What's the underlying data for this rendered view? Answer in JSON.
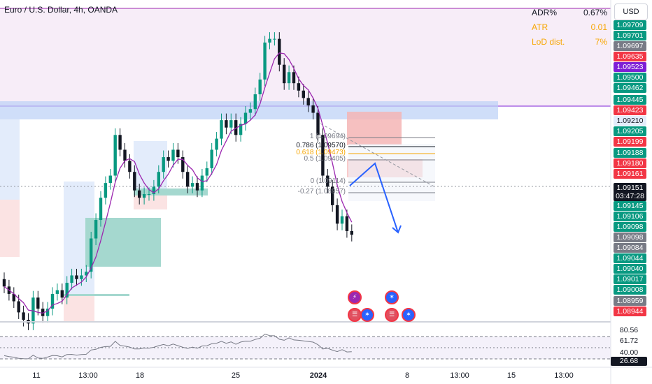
{
  "header": {
    "title": "Euro / U.S. Dollar, 4h, OANDA",
    "currency_button": "USD"
  },
  "stats": [
    {
      "label": "ADR%",
      "value": "0.67%",
      "color": "#131722"
    },
    {
      "label": "ATR",
      "value": "0.01",
      "color": "#f7a600"
    },
    {
      "label": "LoD dist.",
      "value": "7%",
      "color": "#f7a600"
    }
  ],
  "price_scale": [
    {
      "text": "1.09709",
      "color": "#089981"
    },
    {
      "text": "1.09701",
      "color": "#089981"
    },
    {
      "text": "1.09697",
      "color": "#787b86"
    },
    {
      "text": "1.09635",
      "color": "#f23645"
    },
    {
      "text": "1.09523",
      "color": "#7e1fd6"
    },
    {
      "text": "1.09500",
      "color": "#089981"
    },
    {
      "text": "1.09462",
      "color": "#089981"
    },
    {
      "text": "1.09445",
      "color": "#089981"
    },
    {
      "text": "1.09423",
      "color": "#f23645"
    },
    {
      "text": "1.09210",
      "color": "#2962ff"
    },
    {
      "text": "1.09205",
      "color": "#089981"
    },
    {
      "text": "1.09199",
      "color": "#f23645"
    },
    {
      "text": "1.09188",
      "color": "#089981"
    },
    {
      "text": "1.09180",
      "color": "#f23645"
    },
    {
      "text": "1.09161",
      "color": "#f23645"
    },
    {
      "text": "1.09151",
      "color": "#ffffff"
    },
    {
      "text": "03:47:28",
      "color": "#ffffff"
    },
    {
      "text": "1.09145",
      "color": "#089981"
    },
    {
      "text": "1.09106",
      "color": "#089981"
    },
    {
      "text": "1.09098",
      "color": "#089981"
    },
    {
      "text": "1.09098",
      "color": "#787b86"
    },
    {
      "text": "1.09084",
      "color": "#787b86"
    },
    {
      "text": "1.09044",
      "color": "#089981"
    },
    {
      "text": "1.09040",
      "color": "#089981"
    },
    {
      "text": "1.09017",
      "color": "#089981"
    },
    {
      "text": "1.09008",
      "color": "#089981"
    },
    {
      "text": "1.08959",
      "color": "#787b86"
    },
    {
      "text": "1.08944",
      "color": "#f23645"
    }
  ],
  "rsi_scale": [
    "80.56",
    "61.72",
    "40.00",
    "26.68"
  ],
  "x_axis": [
    "11",
    "13:00",
    "18",
    "25",
    "2024",
    "8",
    "13:00",
    "15",
    "13:00"
  ],
  "fib_levels": [
    {
      "text": "1 (1.09694)",
      "color": "#787b86"
    },
    {
      "text": "0.786 (1.09570)",
      "color": "#131722"
    },
    {
      "text": "0.618 (1.09473)",
      "color": "#f7a600"
    },
    {
      "text": "0.5 (1.09405)",
      "color": "#787b86"
    },
    {
      "text": "0 (1.09114)",
      "color": "#787b86"
    },
    {
      "text": "-0.27 (1.08957)",
      "color": "#787b86"
    }
  ],
  "event_icons": [
    "lightning-icon",
    "us-flag-icon",
    "eu-flag-icon",
    "eu-flag-icon",
    "us-flag-icon",
    "eu-flag-icon"
  ],
  "colors": {
    "up": "#089981",
    "down": "#131722",
    "ma": "#9c27b0",
    "rsi": "#787b86"
  },
  "chart_data": {
    "type": "candlestick",
    "title": "Euro / U.S. Dollar, 4h, OANDA",
    "x_ticks": [
      "11",
      "13:00",
      "18",
      "25",
      "2024",
      "8",
      "13:00",
      "15",
      "13:00"
    ],
    "y_ticks": [
      "1.09709",
      "1.09500",
      "1.09210",
      "1.09151",
      "1.09098",
      "1.09008",
      "1.08944"
    ],
    "series": [
      {
        "name": "close",
        "values": [
          1.09,
          1.0898,
          1.0896,
          1.0893,
          1.0891,
          1.089,
          1.0897,
          1.0894,
          1.0892,
          1.0894,
          1.0898,
          1.0899,
          1.0897,
          1.0901,
          1.0903,
          1.0902,
          1.0903,
          1.0904,
          1.0913,
          1.0918,
          1.0924,
          1.0928,
          1.093,
          1.0941,
          1.0937,
          1.0934,
          1.0931,
          1.0926,
          1.0924,
          1.0925,
          1.0925,
          1.0927,
          1.0931,
          1.0935,
          1.0934,
          1.0937,
          1.0935,
          1.0931,
          1.0927,
          1.0928,
          1.0926,
          1.093,
          1.0932,
          1.0937,
          1.094,
          1.0945,
          1.0943,
          1.0945,
          1.0941,
          1.0944,
          1.0947,
          1.0948,
          1.0952,
          1.0956,
          1.0966,
          1.0967,
          1.0967,
          1.096,
          1.0955,
          1.0958,
          1.0955,
          1.0953,
          1.0951,
          1.0949,
          1.0947,
          1.0941,
          1.093,
          1.0927,
          1.0922,
          1.0917,
          1.0919,
          1.0915,
          1.0914
        ]
      }
    ],
    "rsi": {
      "levels": [
        80.56,
        61.72,
        40.0,
        26.68
      ]
    }
  }
}
